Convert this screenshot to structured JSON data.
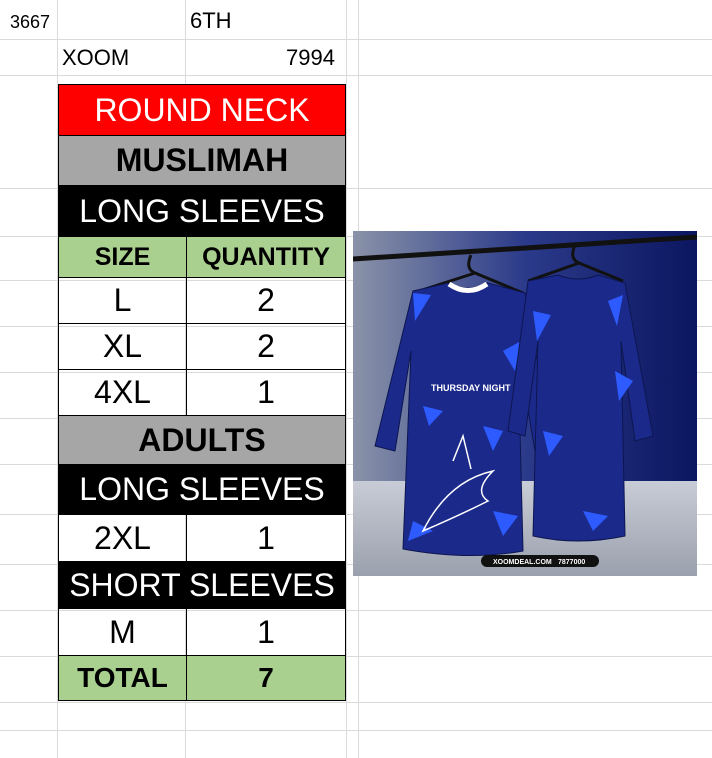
{
  "sheet": {
    "top": {
      "a1": "3667",
      "c1": "6TH",
      "b2": "XOOM",
      "c2": "7994"
    },
    "table": {
      "header_style": "ROUND NECK",
      "category_1": "MUSLIMAH",
      "sleeve_1": "LONG SLEEVES",
      "col_size": "SIZE",
      "col_qty": "QUANTITY",
      "rows_1": [
        {
          "size": "L",
          "qty": "2"
        },
        {
          "size": "XL",
          "qty": "2"
        },
        {
          "size": "4XL",
          "qty": "1"
        }
      ],
      "category_2": "ADULTS",
      "sleeve_2": "LONG SLEEVES",
      "rows_2": [
        {
          "size": "2XL",
          "qty": "1"
        }
      ],
      "sleeve_3": "SHORT SLEEVES",
      "rows_3": [
        {
          "size": "M",
          "qty": "1"
        }
      ],
      "total_label": "TOTAL",
      "total_value": "7"
    },
    "image": {
      "jersey_text": "THURSDAY NIGHT",
      "watermark": "XOOMDEAL.COM",
      "watermark_phone": "7877000"
    },
    "colors": {
      "red": "#ff0000",
      "gray": "#a6a6a6",
      "black": "#000000",
      "green": "#a9d08e",
      "jersey": "#1b2a8a",
      "jersey_accent": "#2d5bff"
    }
  }
}
